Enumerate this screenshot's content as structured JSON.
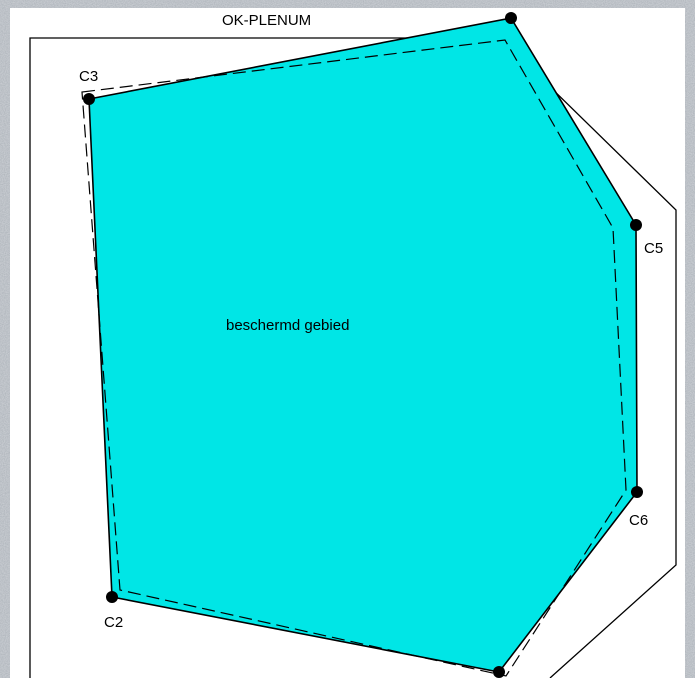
{
  "diagram": {
    "enclosure_label": "OK-PLENUM",
    "area_label": "beschermd gebied",
    "points": [
      {
        "id": "c3",
        "label": "C3"
      },
      {
        "id": "c5",
        "label": "C5"
      },
      {
        "id": "c6",
        "label": "C6"
      },
      {
        "id": "c2",
        "label": "C2"
      }
    ],
    "colors": {
      "background_texture": "#b9bec4",
      "panel": "#ffffff",
      "protected_area_fill": "#00e6e6",
      "outline": "#000000"
    }
  }
}
